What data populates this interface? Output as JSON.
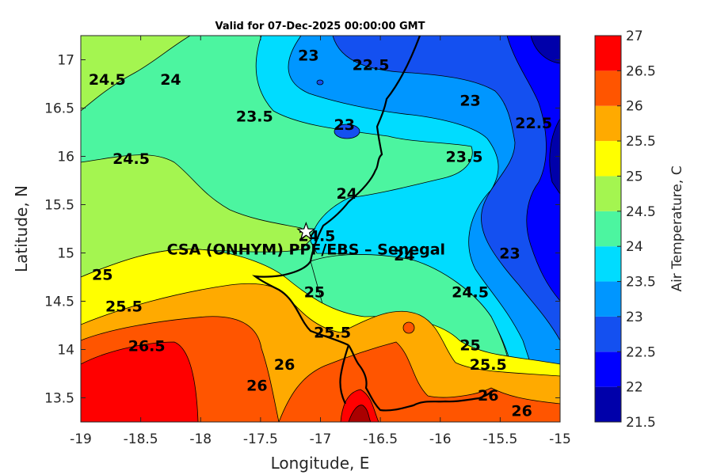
{
  "chart_data": {
    "type": "heatmap",
    "title": "Valid for 07-Dec-2025 00:00:00 GMT",
    "xlabel": "Longitude, E",
    "ylabel": "Latitude, N",
    "xlim": [
      -19,
      -15
    ],
    "ylim": [
      13.25,
      17.25
    ],
    "xticks": [
      "-19",
      "-18.5",
      "-18",
      "-17.5",
      "-17",
      "-16.5",
      "-16",
      "-15.5",
      "-15"
    ],
    "yticks": [
      "13.5",
      "14",
      "14.5",
      "15",
      "15.5",
      "16",
      "16.5",
      "17"
    ],
    "colorbar": {
      "label": "Air Temperature, C",
      "levels": [
        21.5,
        22,
        22.5,
        23,
        23.5,
        24,
        24.5,
        25,
        25.5,
        26,
        26.5,
        27
      ],
      "tick_labels": [
        "21.5",
        "22",
        "22.5",
        "23",
        "23.5",
        "24",
        "24.5",
        "25",
        "25.5",
        "26",
        "26.5",
        "27"
      ],
      "colors": [
        "#0000aa",
        "#0000ff",
        "#1450f0",
        "#0096ff",
        "#00dcff",
        "#4cf5a0",
        "#a4f550",
        "#ffff00",
        "#ffaa00",
        "#ff5500",
        "#ff0000",
        "#aa0000"
      ]
    },
    "station": {
      "name": "CSA (ONHYM) PPF/EBS  – Senegal",
      "lon": -17.12,
      "lat": 15.22
    },
    "contour_labels": [
      {
        "text": "24.5",
        "lon": -18.78,
        "lat": 16.8
      },
      {
        "text": "24",
        "lon": -18.25,
        "lat": 16.8
      },
      {
        "text": "23",
        "lon": -17.1,
        "lat": 17.05
      },
      {
        "text": "22.5",
        "lon": -16.58,
        "lat": 16.95
      },
      {
        "text": "23.5",
        "lon": -17.55,
        "lat": 16.42
      },
      {
        "text": "23",
        "lon": -16.8,
        "lat": 16.33
      },
      {
        "text": "23",
        "lon": -15.75,
        "lat": 16.58
      },
      {
        "text": "22.5",
        "lon": -15.22,
        "lat": 16.35
      },
      {
        "text": "24.5",
        "lon": -18.58,
        "lat": 15.98
      },
      {
        "text": "23.5",
        "lon": -15.8,
        "lat": 16.0
      },
      {
        "text": "24",
        "lon": -16.78,
        "lat": 15.62
      },
      {
        "text": "24.5",
        "lon": -17.03,
        "lat": 15.18
      },
      {
        "text": "24",
        "lon": -16.3,
        "lat": 14.98
      },
      {
        "text": "23",
        "lon": -15.42,
        "lat": 15.0
      },
      {
        "text": "25",
        "lon": -18.82,
        "lat": 14.78
      },
      {
        "text": "25",
        "lon": -17.05,
        "lat": 14.6
      },
      {
        "text": "25.5",
        "lon": -18.64,
        "lat": 14.45
      },
      {
        "text": "24.5",
        "lon": -15.75,
        "lat": 14.6
      },
      {
        "text": "25.5",
        "lon": -16.9,
        "lat": 14.18
      },
      {
        "text": "26.5",
        "lon": -18.45,
        "lat": 14.04
      },
      {
        "text": "25",
        "lon": -15.75,
        "lat": 14.05
      },
      {
        "text": "25.5",
        "lon": -15.6,
        "lat": 13.85
      },
      {
        "text": "26",
        "lon": -17.3,
        "lat": 13.85
      },
      {
        "text": "26",
        "lon": -17.53,
        "lat": 13.63
      },
      {
        "text": "26",
        "lon": -15.6,
        "lat": 13.53
      },
      {
        "text": "26",
        "lon": -15.32,
        "lat": 13.37
      }
    ]
  }
}
